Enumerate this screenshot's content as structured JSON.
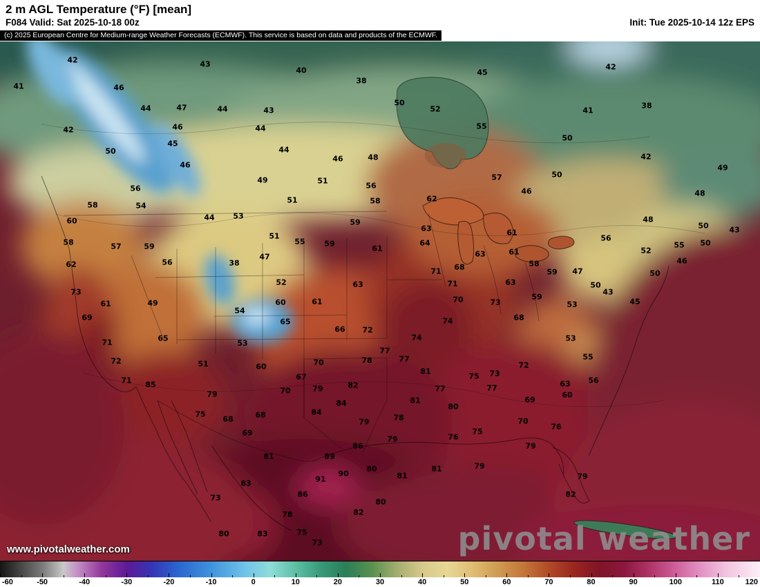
{
  "header": {
    "title": "2 m AGL Temperature (°F) [mean]",
    "valid": "F084 Valid: Sat 2025-10-18 00z",
    "init": "Init: Tue 2025-10-14 12z EPS",
    "copyright": "(c) 2025 European Centre for Medium-range Weather Forecasts (ECMWF). This service is based on data and products of the ECMWF."
  },
  "watermark": {
    "site_url": "www.pivotalweather.com",
    "brand": "pivotal weather"
  },
  "colorbar": {
    "unit": "°F",
    "min": -60,
    "max": 120,
    "ticks": [
      -60,
      -50,
      -40,
      -30,
      -20,
      -10,
      0,
      10,
      20,
      30,
      40,
      50,
      60,
      70,
      80,
      90,
      100,
      110,
      120
    ],
    "stops": [
      {
        "t": -60,
        "c": "#141414"
      },
      {
        "t": -50,
        "c": "#7a7a7a"
      },
      {
        "t": -45,
        "c": "#c8c8c8"
      },
      {
        "t": -42,
        "c": "#c794c7"
      },
      {
        "t": -36,
        "c": "#93389b"
      },
      {
        "t": -30,
        "c": "#5c1a96"
      },
      {
        "t": -24,
        "c": "#3535b4"
      },
      {
        "t": -18,
        "c": "#2a64cf"
      },
      {
        "t": -10,
        "c": "#3f93dc"
      },
      {
        "t": -2,
        "c": "#6fc3e8"
      },
      {
        "t": 4,
        "c": "#8fdcd8"
      },
      {
        "t": 10,
        "c": "#5dbfa4"
      },
      {
        "t": 16,
        "c": "#38997a"
      },
      {
        "t": 22,
        "c": "#2b7e57"
      },
      {
        "t": 28,
        "c": "#58904f"
      },
      {
        "t": 34,
        "c": "#a3ad6e"
      },
      {
        "t": 40,
        "c": "#d6c98b"
      },
      {
        "t": 46,
        "c": "#e6d795"
      },
      {
        "t": 52,
        "c": "#dfbc72"
      },
      {
        "t": 58,
        "c": "#cf9a52"
      },
      {
        "t": 64,
        "c": "#c3763a"
      },
      {
        "t": 70,
        "c": "#b14a28"
      },
      {
        "t": 76,
        "c": "#99261f"
      },
      {
        "t": 82,
        "c": "#801426"
      },
      {
        "t": 88,
        "c": "#8c1840"
      },
      {
        "t": 94,
        "c": "#b03468"
      },
      {
        "t": 100,
        "c": "#cf5f9b"
      },
      {
        "t": 106,
        "c": "#e392c4"
      },
      {
        "t": 112,
        "c": "#f2c3e0"
      },
      {
        "t": 120,
        "c": "#fdeef8"
      }
    ]
  },
  "map": {
    "labels": [
      [
        42,
        105,
        27
      ],
      [
        43,
        297,
        33
      ],
      [
        40,
        436,
        42
      ],
      [
        38,
        523,
        57
      ],
      [
        45,
        698,
        45
      ],
      [
        42,
        884,
        37
      ],
      [
        41,
        27,
        65
      ],
      [
        46,
        172,
        67
      ],
      [
        44,
        211,
        97
      ],
      [
        47,
        263,
        96
      ],
      [
        44,
        322,
        98
      ],
      [
        43,
        389,
        100
      ],
      [
        50,
        578,
        89
      ],
      [
        52,
        630,
        98
      ],
      [
        41,
        851,
        100
      ],
      [
        38,
        936,
        93
      ],
      [
        42,
        99,
        128
      ],
      [
        46,
        257,
        124
      ],
      [
        44,
        377,
        126
      ],
      [
        55,
        697,
        123
      ],
      [
        45,
        250,
        148
      ],
      [
        50,
        821,
        140
      ],
      [
        50,
        160,
        159
      ],
      [
        44,
        411,
        157
      ],
      [
        46,
        489,
        170
      ],
      [
        48,
        540,
        168
      ],
      [
        42,
        935,
        167
      ],
      [
        46,
        268,
        179
      ],
      [
        49,
        1046,
        183
      ],
      [
        49,
        380,
        201
      ],
      [
        51,
        467,
        202
      ],
      [
        56,
        537,
        209
      ],
      [
        57,
        719,
        197
      ],
      [
        50,
        806,
        193
      ],
      [
        56,
        196,
        213
      ],
      [
        51,
        423,
        230
      ],
      [
        58,
        543,
        231
      ],
      [
        62,
        625,
        228
      ],
      [
        46,
        762,
        217
      ],
      [
        48,
        1013,
        220
      ],
      [
        58,
        134,
        237
      ],
      [
        54,
        204,
        238
      ],
      [
        44,
        303,
        255
      ],
      [
        53,
        345,
        253
      ],
      [
        59,
        514,
        262
      ],
      [
        63,
        617,
        271
      ],
      [
        61,
        741,
        277
      ],
      [
        48,
        938,
        258
      ],
      [
        50,
        1018,
        267
      ],
      [
        43,
        1063,
        273
      ],
      [
        60,
        104,
        260
      ],
      [
        58,
        99,
        291
      ],
      [
        57,
        168,
        297
      ],
      [
        59,
        216,
        297
      ],
      [
        51,
        397,
        282
      ],
      [
        55,
        434,
        290
      ],
      [
        59,
        477,
        293
      ],
      [
        61,
        546,
        300
      ],
      [
        64,
        615,
        292
      ],
      [
        56,
        877,
        285
      ],
      [
        52,
        935,
        303
      ],
      [
        55,
        983,
        295
      ],
      [
        50,
        1021,
        292
      ],
      [
        62,
        103,
        323
      ],
      [
        56,
        242,
        320
      ],
      [
        38,
        339,
        321
      ],
      [
        47,
        383,
        312
      ],
      [
        52,
        407,
        349
      ],
      [
        63,
        518,
        352
      ],
      [
        63,
        695,
        308
      ],
      [
        61,
        744,
        305
      ],
      [
        58,
        773,
        322
      ],
      [
        59,
        799,
        334
      ],
      [
        46,
        987,
        318
      ],
      [
        50,
        948,
        336
      ],
      [
        47,
        836,
        333
      ],
      [
        71,
        631,
        333
      ],
      [
        68,
        665,
        327
      ],
      [
        73,
        110,
        363
      ],
      [
        61,
        153,
        380
      ],
      [
        49,
        221,
        379
      ],
      [
        60,
        406,
        378
      ],
      [
        61,
        459,
        377
      ],
      [
        65,
        413,
        406
      ],
      [
        71,
        655,
        351
      ],
      [
        63,
        739,
        349
      ],
      [
        70,
        663,
        374
      ],
      [
        73,
        717,
        378
      ],
      [
        59,
        777,
        370
      ],
      [
        53,
        828,
        381
      ],
      [
        50,
        862,
        353
      ],
      [
        43,
        880,
        363
      ],
      [
        45,
        919,
        377
      ],
      [
        69,
        126,
        400
      ],
      [
        54,
        347,
        390
      ],
      [
        66,
        492,
        417
      ],
      [
        72,
        532,
        418
      ],
      [
        74,
        648,
        405
      ],
      [
        74,
        603,
        429
      ],
      [
        68,
        751,
        400
      ],
      [
        65,
        236,
        430
      ],
      [
        71,
        155,
        436
      ],
      [
        53,
        351,
        437
      ],
      [
        72,
        168,
        463
      ],
      [
        51,
        294,
        467
      ],
      [
        60,
        378,
        471
      ],
      [
        70,
        461,
        465
      ],
      [
        78,
        531,
        462
      ],
      [
        77,
        557,
        448
      ],
      [
        77,
        585,
        460
      ],
      [
        81,
        616,
        478
      ],
      [
        67,
        436,
        486
      ],
      [
        79,
        460,
        503
      ],
      [
        82,
        511,
        498
      ],
      [
        77,
        637,
        503
      ],
      [
        75,
        686,
        485
      ],
      [
        73,
        716,
        481
      ],
      [
        72,
        758,
        469
      ],
      [
        53,
        826,
        430
      ],
      [
        55,
        851,
        457
      ],
      [
        56,
        859,
        491
      ],
      [
        63,
        818,
        496
      ],
      [
        60,
        821,
        512
      ],
      [
        69,
        767,
        519
      ],
      [
        77,
        712,
        502
      ],
      [
        81,
        601,
        520
      ],
      [
        80,
        656,
        529
      ],
      [
        78,
        577,
        545
      ],
      [
        70,
        757,
        550
      ],
      [
        76,
        656,
        573
      ],
      [
        75,
        691,
        565
      ],
      [
        76,
        805,
        558
      ],
      [
        79,
        768,
        586
      ],
      [
        85,
        218,
        497
      ],
      [
        71,
        183,
        491
      ],
      [
        79,
        307,
        511
      ],
      [
        75,
        290,
        540
      ],
      [
        68,
        330,
        547
      ],
      [
        70,
        413,
        506
      ],
      [
        68,
        377,
        541
      ],
      [
        69,
        358,
        567
      ],
      [
        84,
        494,
        524
      ],
      [
        84,
        458,
        537
      ],
      [
        79,
        527,
        551
      ],
      [
        86,
        518,
        586
      ],
      [
        79,
        568,
        576
      ],
      [
        81,
        389,
        601
      ],
      [
        89,
        477,
        601
      ],
      [
        90,
        497,
        626
      ],
      [
        91,
        464,
        634
      ],
      [
        80,
        538,
        619
      ],
      [
        81,
        582,
        629
      ],
      [
        81,
        632,
        619
      ],
      [
        79,
        694,
        615
      ],
      [
        83,
        356,
        640
      ],
      [
        73,
        312,
        661
      ],
      [
        86,
        438,
        656
      ],
      [
        82,
        519,
        682
      ],
      [
        80,
        551,
        667
      ],
      [
        78,
        416,
        685
      ],
      [
        83,
        380,
        713
      ],
      [
        80,
        324,
        713
      ],
      [
        75,
        437,
        711
      ],
      [
        73,
        459,
        726
      ],
      [
        79,
        843,
        630
      ],
      [
        82,
        826,
        656
      ]
    ]
  }
}
